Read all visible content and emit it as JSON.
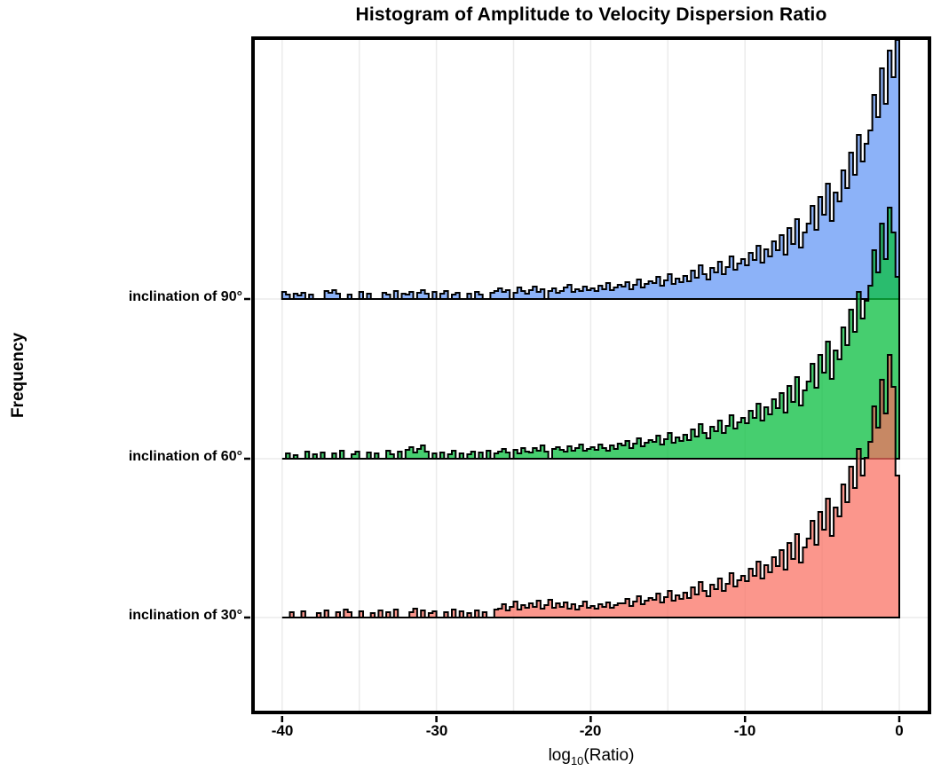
{
  "title": "Histogram of Amplitude to Velocity Dispersion Ratio",
  "ylabel": "Frequency",
  "xlabel": {
    "prefix": "log",
    "sub": "10",
    "suffix": "(Ratio)"
  },
  "chart_data": {
    "type": "bar",
    "subtype": "ridgeline-histogram",
    "title": "Histogram of Amplitude to Velocity Dispersion Ratio",
    "xlabel": "log10(Ratio)",
    "ylabel": "Frequency",
    "x_range": [
      -40,
      0
    ],
    "bin_width": 0.25,
    "values_units": "frequency (pixel height above each row baseline; rows share a common frequency scale, no numeric y ticks shown)",
    "grid": "on",
    "grid_x_step": 5,
    "grid_color": "#ebebeb",
    "panel_border_color": "#000000",
    "outline_color": "#000000",
    "background_color": "#ffffff",
    "x_ticks": [
      {
        "label": "-40",
        "value": -40
      },
      {
        "label": "-30",
        "value": -30
      },
      {
        "label": "-20",
        "value": -20
      },
      {
        "label": "-10",
        "value": -10
      },
      {
        "label": "0",
        "value": 0
      }
    ],
    "categories": [
      "inclination of 90°",
      "inclination of 60°",
      "inclination of 30°"
    ],
    "series": [
      {
        "name": "inclination-90",
        "label": "inclination of 90°",
        "fill": "#8CB2F8",
        "fill_opacity": 1.0,
        "values": [
          8,
          5,
          0,
          6,
          4,
          7,
          0,
          5,
          0,
          0,
          0,
          9,
          7,
          10,
          6,
          0,
          0,
          5,
          0,
          0,
          8,
          0,
          6,
          0,
          0,
          0,
          7,
          5,
          0,
          9,
          0,
          6,
          5,
          8,
          0,
          7,
          10,
          6,
          0,
          8,
          0,
          6,
          9,
          0,
          5,
          7,
          0,
          0,
          6,
          0,
          8,
          5,
          0,
          0,
          7,
          9,
          12,
          8,
          10,
          0,
          7,
          13,
          9,
          6,
          10,
          14,
          8,
          11,
          0,
          9,
          12,
          7,
          9,
          13,
          16,
          8,
          11,
          9,
          14,
          10,
          12,
          9,
          15,
          11,
          18,
          10,
          13,
          16,
          14,
          19,
          11,
          16,
          22,
          13,
          17,
          20,
          18,
          25,
          15,
          21,
          28,
          17,
          23,
          19,
          26,
          20,
          32,
          24,
          38,
          28,
          22,
          35,
          30,
          42,
          28,
          36,
          48,
          33,
          40,
          45,
          38,
          52,
          44,
          60,
          41,
          56,
          48,
          65,
          55,
          72,
          50,
          80,
          62,
          90,
          58,
          75,
          85,
          105,
          78,
          115,
          95,
          130,
          88,
          120,
          110,
          145,
          125,
          165,
          140,
          185,
          155,
          175,
          190,
          230,
          205,
          260,
          220,
          280,
          250,
          292
        ]
      },
      {
        "name": "inclination-60",
        "label": "inclination of 60°",
        "fill": "#0CBE42",
        "fill_opacity": 0.76,
        "values": [
          0,
          6,
          0,
          4,
          0,
          0,
          8,
          0,
          5,
          0,
          7,
          0,
          0,
          6,
          0,
          9,
          0,
          0,
          5,
          8,
          0,
          0,
          7,
          0,
          6,
          0,
          0,
          9,
          5,
          0,
          8,
          0,
          10,
          13,
          7,
          11,
          15,
          8,
          0,
          6,
          0,
          7,
          0,
          5,
          9,
          0,
          6,
          0,
          5,
          8,
          0,
          7,
          0,
          9,
          0,
          6,
          8,
          11,
          7,
          0,
          10,
          6,
          12,
          8,
          7,
          12,
          9,
          15,
          8,
          0,
          11,
          13,
          10,
          8,
          14,
          9,
          12,
          16,
          9,
          11,
          13,
          10,
          16,
          12,
          9,
          15,
          11,
          17,
          15,
          20,
          12,
          17,
          23,
          14,
          18,
          21,
          19,
          26,
          16,
          22,
          29,
          18,
          24,
          20,
          27,
          21,
          33,
          25,
          39,
          29,
          23,
          36,
          31,
          43,
          29,
          37,
          49,
          34,
          41,
          46,
          40,
          54,
          46,
          62,
          43,
          58,
          50,
          67,
          57,
          74,
          52,
          82,
          64,
          92,
          60,
          77,
          87,
          107,
          80,
          117,
          97,
          132,
          90,
          122,
          112,
          148,
          128,
          168,
          143,
          188,
          158,
          178,
          195,
          235,
          210,
          265,
          225,
          283,
          255,
          205
        ]
      },
      {
        "name": "inclination-30",
        "label": "inclination of 30°",
        "fill": "#FA6E5F",
        "fill_opacity": 0.72,
        "values": [
          0,
          0,
          6,
          0,
          0,
          7,
          0,
          0,
          0,
          5,
          0,
          8,
          0,
          0,
          6,
          0,
          9,
          6,
          0,
          0,
          7,
          0,
          0,
          5,
          0,
          8,
          0,
          6,
          0,
          9,
          0,
          0,
          0,
          6,
          10,
          0,
          8,
          0,
          5,
          7,
          0,
          0,
          6,
          0,
          9,
          0,
          7,
          0,
          5,
          0,
          8,
          0,
          6,
          0,
          0,
          9,
          10,
          15,
          8,
          12,
          18,
          9,
          14,
          11,
          16,
          12,
          19,
          10,
          14,
          20,
          11,
          16,
          12,
          17,
          10,
          15,
          9,
          13,
          18,
          11,
          13,
          10,
          15,
          12,
          17,
          11,
          14,
          16,
          16,
          21,
          13,
          18,
          24,
          15,
          19,
          22,
          20,
          27,
          17,
          23,
          30,
          19,
          25,
          21,
          28,
          22,
          34,
          26,
          40,
          30,
          24,
          37,
          32,
          44,
          30,
          38,
          50,
          35,
          42,
          47,
          41,
          55,
          47,
          63,
          44,
          59,
          51,
          68,
          58,
          76,
          54,
          84,
          66,
          94,
          62,
          79,
          89,
          109,
          82,
          119,
          99,
          134,
          92,
          124,
          114,
          150,
          130,
          170,
          146,
          190,
          160,
          180,
          198,
          238,
          214,
          268,
          230,
          296,
          260,
          160
        ]
      }
    ],
    "legend": "none (rows labeled on left axis)"
  }
}
